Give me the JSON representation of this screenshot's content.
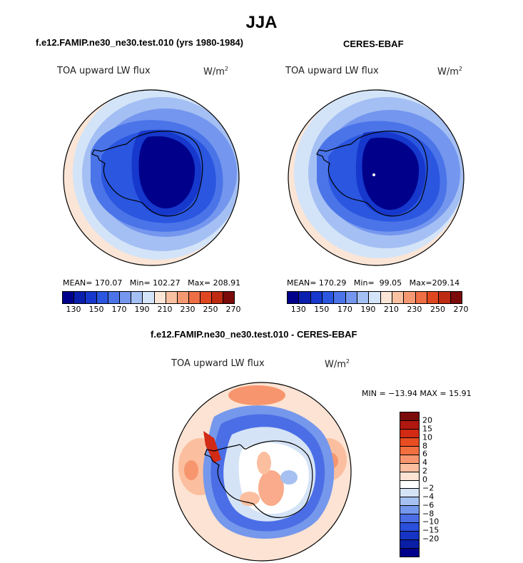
{
  "figure": {
    "title": "JJA",
    "panels": [
      {
        "title": "f.e12.FAMIP.ne30_ne30.test.010 (yrs 1980-1984)",
        "variable": "TOA upward LW flux",
        "units": "W/m",
        "units_sup": "2",
        "stats": {
          "mean_label": "MEAN=",
          "mean": "170.07",
          "min_label": "Min=",
          "min": "102.27",
          "max_label": "Max=",
          "max": "208.91"
        }
      },
      {
        "title": "CERES-EBAF",
        "variable": "TOA upward LW flux",
        "units": "W/m",
        "units_sup": "2",
        "stats": {
          "mean_label": "MEAN=",
          "mean": "170.29",
          "min_label": "Min=",
          "min": "99.05",
          "max_label": "Max=",
          "max": "209.14"
        }
      }
    ],
    "diff_panel": {
      "title": "f.e12.FAMIP.ne30_ne30.test.010 - CERES-EBAF",
      "variable": "TOA upward LW flux",
      "units": "W/m",
      "units_sup": "2",
      "range_text": "MIN = −13.94 MAX =  15.91"
    }
  },
  "colorbars": {
    "absolute": {
      "colors": [
        "#00008b",
        "#0a1fae",
        "#1638cc",
        "#2a56e0",
        "#4a74e8",
        "#7496ee",
        "#a4bff3",
        "#d4e4f8",
        "#fbe5d6",
        "#f9c1a2",
        "#f49872",
        "#ee6e45",
        "#e04620",
        "#bf2a12",
        "#7b0a0a"
      ],
      "tick_labels": [
        "130",
        "150",
        "170",
        "190",
        "210",
        "230",
        "250",
        "270"
      ]
    },
    "difference": {
      "colors_top_to_bottom": [
        "#7b0a0a",
        "#b0180f",
        "#d22a14",
        "#e84d22",
        "#f26f40",
        "#f7966e",
        "#fbbf9f",
        "#fde3d3",
        "#ffffff",
        "#d5e3f7",
        "#a6c1f1",
        "#7598ec",
        "#4b6ee6",
        "#2a4fdc",
        "#1634c4",
        "#0a1fa6",
        "#00008b"
      ],
      "labels": [
        "20",
        "15",
        "10",
        "8",
        "6",
        "4",
        "2",
        "0",
        "−2",
        "−4",
        "−6",
        "−8",
        "−10",
        "−15",
        "−20"
      ]
    }
  }
}
